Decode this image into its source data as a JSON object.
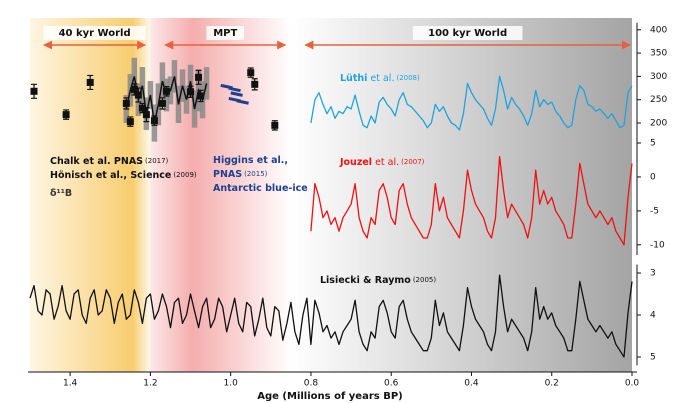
{
  "chart_data": {
    "type": "line",
    "xlabel": "Age (Millions of years BP)",
    "xlim": [
      1.5,
      0
    ],
    "xticks": [
      1.4,
      1.2,
      {
        "value": 1.0,
        "label": "1.0"
      },
      0.8,
      0.6,
      0.4,
      0.2,
      {
        "value": 0.0,
        "label": "0.0"
      }
    ],
    "ylim": [
      150,
      415
    ],
    "yticks": [
      200,
      250,
      300,
      350,
      400
    ],
    "y2lim": [
      -11.5,
      5
    ],
    "y2ticks": [
      5,
      0,
      -5,
      -10
    ],
    "y3lim": [
      2.8,
      5.2
    ],
    "y3ticks": [
      3,
      4,
      5
    ],
    "y3invert": true,
    "periods": [
      {
        "label": "40 kyr World",
        "from": 1.465,
        "to": 1.213,
        "band": [
          1.5,
          1.2
        ],
        "color": "#f6c04a"
      },
      {
        "label": "MPT",
        "from": 1.163,
        "to": 0.864,
        "band": [
          1.2,
          0.85
        ],
        "color": "#f08a8a"
      },
      {
        "label": "100 kyr World",
        "from": 0.814,
        "to": 0.005,
        "band": [
          0.85,
          0
        ],
        "color": "#9a9a9a"
      }
    ],
    "arrow_color": "#e8603c",
    "annotations": [
      {
        "parts": [
          "Chalk et al. PNAS"
        ],
        "year": "(2017)",
        "color": "#111111"
      },
      {
        "parts": [
          "Hönisch et al., Science"
        ],
        "year": "(2009)",
        "color": "#111111"
      },
      {
        "parts": [
          "δ¹¹B"
        ],
        "color": "#333333"
      },
      {
        "parts": [
          "Higgins et al.,"
        ],
        "color": "#1f3f8f"
      },
      {
        "parts": [
          "PNAS"
        ],
        "year": "(2015)",
        "color": "#1f3f8f"
      },
      {
        "parts": [
          "Antarctic blue-ice"
        ],
        "color": "#1f3f8f"
      },
      {
        "parts": [
          "Lüthi",
          "et al."
        ],
        "year": "(2008)",
        "color": "#1ea3dd"
      },
      {
        "parts": [
          "Jouzel",
          "et al."
        ],
        "year": "(2007)",
        "color": "#f01010"
      },
      {
        "parts": [
          "Lisiecki & Raymo"
        ],
        "year": "(2005)",
        "color": "#111111"
      }
    ],
    "series": [
      {
        "style": "band",
        "axis": "y",
        "color": "#8a8a8a",
        "line_color": "#111111",
        "x": [
          1.26,
          1.25,
          1.24,
          1.23,
          1.22,
          1.21,
          1.2,
          1.19,
          1.18,
          1.17,
          1.16,
          1.15,
          1.14,
          1.13,
          1.12,
          1.11,
          1.1,
          1.09,
          1.08,
          1.07,
          1.06
        ],
        "values": [
          230,
          270,
          300,
          250,
          280,
          220,
          260,
          200,
          240,
          290,
          260,
          270,
          300,
          240,
          280,
          250,
          290,
          230,
          270,
          250,
          285
        ],
        "errors": [
          30,
          35,
          40,
          35,
          40,
          35,
          30,
          40,
          45,
          40,
          35,
          30,
          35,
          40,
          35,
          30,
          35,
          40,
          45,
          40,
          35
        ]
      },
      {
        "style": "points",
        "axis": "y",
        "color": "#111111",
        "x": [
          1.49,
          1.41,
          1.35,
          1.26,
          1.25,
          1.24,
          1.23,
          1.22,
          1.21,
          1.19,
          1.17,
          1.16,
          1.1,
          1.08,
          1.075,
          0.95,
          0.94,
          0.89
        ],
        "values": [
          268,
          218,
          287,
          242,
          203,
          272,
          260,
          232,
          218,
          205,
          242,
          268,
          267,
          298,
          258,
          308,
          283,
          195
        ],
        "errors": [
          15,
          10,
          15,
          12,
          10,
          12,
          15,
          10,
          15,
          10,
          12,
          10,
          12,
          15,
          12,
          10,
          12,
          10
        ]
      },
      {
        "style": "dashes",
        "axis": "y",
        "color": "#1f3f8f",
        "x": [
          1.01,
          0.99,
          0.985,
          0.99,
          0.97
        ],
        "values": [
          278,
          272,
          262,
          250,
          245
        ]
      },
      {
        "style": "line",
        "axis": "y",
        "color": "#1ea3dd",
        "x": [
          0.8,
          0.79,
          0.78,
          0.77,
          0.76,
          0.75,
          0.74,
          0.73,
          0.72,
          0.71,
          0.7,
          0.69,
          0.68,
          0.67,
          0.66,
          0.65,
          0.64,
          0.63,
          0.62,
          0.61,
          0.6,
          0.59,
          0.58,
          0.57,
          0.56,
          0.55,
          0.54,
          0.53,
          0.52,
          0.51,
          0.5,
          0.49,
          0.48,
          0.47,
          0.46,
          0.45,
          0.44,
          0.43,
          0.42,
          0.41,
          0.4,
          0.39,
          0.38,
          0.37,
          0.36,
          0.35,
          0.34,
          0.33,
          0.32,
          0.31,
          0.3,
          0.29,
          0.28,
          0.27,
          0.26,
          0.25,
          0.24,
          0.23,
          0.22,
          0.21,
          0.2,
          0.19,
          0.18,
          0.17,
          0.16,
          0.15,
          0.14,
          0.13,
          0.12,
          0.11,
          0.1,
          0.09,
          0.08,
          0.07,
          0.06,
          0.05,
          0.04,
          0.03,
          0.02,
          0.01,
          0
        ],
        "values": [
          200,
          250,
          265,
          240,
          220,
          235,
          210,
          225,
          220,
          235,
          230,
          260,
          225,
          195,
          190,
          215,
          200,
          245,
          255,
          240,
          230,
          215,
          250,
          265,
          240,
          235,
          225,
          215,
          205,
          190,
          200,
          240,
          225,
          235,
          215,
          200,
          195,
          185,
          220,
          285,
          265,
          250,
          240,
          230,
          210,
          195,
          230,
          300,
          270,
          230,
          255,
          240,
          230,
          215,
          195,
          220,
          270,
          235,
          250,
          240,
          245,
          225,
          215,
          200,
          190,
          195,
          250,
          280,
          270,
          240,
          235,
          225,
          230,
          220,
          210,
          220,
          205,
          190,
          195,
          265,
          280
        ]
      },
      {
        "style": "line",
        "axis": "y2",
        "color": "#f01010",
        "x": [
          0.8,
          0.79,
          0.78,
          0.77,
          0.76,
          0.75,
          0.74,
          0.73,
          0.72,
          0.71,
          0.7,
          0.69,
          0.68,
          0.67,
          0.66,
          0.65,
          0.64,
          0.63,
          0.62,
          0.61,
          0.6,
          0.59,
          0.58,
          0.57,
          0.56,
          0.55,
          0.54,
          0.53,
          0.52,
          0.51,
          0.5,
          0.49,
          0.48,
          0.47,
          0.46,
          0.45,
          0.44,
          0.43,
          0.42,
          0.41,
          0.4,
          0.39,
          0.38,
          0.37,
          0.36,
          0.35,
          0.34,
          0.33,
          0.32,
          0.31,
          0.3,
          0.29,
          0.28,
          0.27,
          0.26,
          0.25,
          0.24,
          0.23,
          0.22,
          0.21,
          0.2,
          0.19,
          0.18,
          0.17,
          0.16,
          0.15,
          0.14,
          0.13,
          0.12,
          0.11,
          0.1,
          0.09,
          0.08,
          0.07,
          0.06,
          0.05,
          0.04,
          0.03,
          0.02,
          0.01,
          0
        ],
        "values": [
          -8,
          -1,
          -3,
          -6,
          -5,
          -7,
          -6,
          -8,
          -6,
          -5,
          -4,
          -1,
          -6,
          -8,
          -9,
          -6,
          -7,
          -2,
          -1,
          -3,
          -6,
          -7,
          -2,
          -1,
          -4,
          -6,
          -7,
          -8,
          -9,
          -9,
          -7,
          -1,
          -5,
          -3,
          -6,
          -7,
          -8,
          -9,
          -5,
          1,
          -2,
          -4,
          -5,
          -6,
          -8,
          -9,
          -6,
          3,
          -2,
          -6,
          -4,
          -5,
          -6,
          -7,
          -9,
          -6,
          1,
          -4,
          -2,
          -4,
          -3,
          -5,
          -6,
          -7,
          -9,
          -9,
          -4,
          2,
          -1,
          -4,
          -5,
          -6,
          -5,
          -6,
          -7,
          -6,
          -8,
          -9,
          -10,
          -3,
          2
        ]
      },
      {
        "style": "line",
        "axis": "y3",
        "color": "#111111",
        "x": [
          1.5,
          1.49,
          1.48,
          1.47,
          1.46,
          1.45,
          1.44,
          1.43,
          1.42,
          1.41,
          1.4,
          1.39,
          1.38,
          1.37,
          1.36,
          1.35,
          1.34,
          1.33,
          1.32,
          1.31,
          1.3,
          1.29,
          1.28,
          1.27,
          1.26,
          1.25,
          1.24,
          1.23,
          1.22,
          1.21,
          1.2,
          1.19,
          1.18,
          1.17,
          1.16,
          1.15,
          1.14,
          1.13,
          1.12,
          1.11,
          1.1,
          1.09,
          1.08,
          1.07,
          1.06,
          1.05,
          1.04,
          1.03,
          1.02,
          1.01,
          1,
          0.99,
          0.98,
          0.97,
          0.96,
          0.95,
          0.94,
          0.93,
          0.92,
          0.91,
          0.9,
          0.89,
          0.88,
          0.87,
          0.86,
          0.85,
          0.84,
          0.83,
          0.82,
          0.81,
          0.8,
          0.79,
          0.78,
          0.77,
          0.76,
          0.75,
          0.74,
          0.73,
          0.72,
          0.71,
          0.7,
          0.69,
          0.68,
          0.67,
          0.66,
          0.65,
          0.64,
          0.63,
          0.62,
          0.61,
          0.6,
          0.59,
          0.58,
          0.57,
          0.56,
          0.55,
          0.54,
          0.53,
          0.52,
          0.51,
          0.5,
          0.49,
          0.48,
          0.47,
          0.46,
          0.45,
          0.44,
          0.43,
          0.42,
          0.41,
          0.4,
          0.39,
          0.38,
          0.37,
          0.36,
          0.35,
          0.34,
          0.33,
          0.32,
          0.31,
          0.3,
          0.29,
          0.28,
          0.27,
          0.26,
          0.25,
          0.24,
          0.23,
          0.22,
          0.21,
          0.2,
          0.19,
          0.18,
          0.17,
          0.16,
          0.15,
          0.14,
          0.13,
          0.12,
          0.11,
          0.1,
          0.09,
          0.08,
          0.07,
          0.06,
          0.05,
          0.04,
          0.03,
          0.02,
          0.01,
          0
        ],
        "values": [
          3.6,
          3.3,
          3.9,
          4.0,
          3.4,
          3.5,
          4.1,
          3.8,
          3.3,
          3.9,
          4.1,
          3.5,
          3.4,
          4.0,
          4.2,
          3.6,
          3.4,
          4.0,
          3.9,
          3.4,
          3.6,
          4.2,
          3.7,
          3.5,
          4.1,
          4.0,
          3.4,
          3.7,
          4.2,
          3.6,
          3.5,
          4.1,
          3.9,
          3.5,
          3.8,
          4.3,
          3.7,
          3.6,
          4.2,
          4.0,
          3.5,
          3.9,
          4.3,
          3.8,
          3.6,
          4.3,
          4.1,
          3.6,
          3.8,
          4.4,
          4.0,
          3.6,
          4.2,
          4.4,
          3.7,
          3.8,
          4.5,
          4.1,
          3.6,
          4.3,
          4.5,
          3.8,
          3.9,
          4.6,
          4.2,
          3.7,
          4.4,
          4.7,
          4.0,
          3.6,
          4.7,
          3.65,
          3.95,
          4.4,
          4.25,
          4.55,
          4.4,
          4.7,
          4.4,
          4.25,
          4.1,
          3.65,
          4.4,
          4.7,
          4.85,
          4.4,
          4.55,
          3.8,
          3.65,
          3.95,
          4.4,
          4.55,
          3.8,
          3.65,
          4.1,
          4.4,
          4.55,
          4.7,
          4.85,
          4.85,
          4.55,
          3.65,
          4.25,
          3.95,
          4.4,
          4.55,
          4.7,
          4.85,
          4.25,
          3.35,
          3.8,
          4.1,
          4.25,
          4.4,
          4.7,
          4.85,
          4.4,
          3.05,
          3.8,
          4.4,
          4.1,
          4.25,
          4.4,
          4.55,
          4.85,
          4.4,
          3.35,
          4.1,
          3.8,
          4.1,
          3.95,
          4.25,
          4.4,
          4.55,
          4.85,
          4.85,
          4.1,
          3.2,
          3.65,
          4.1,
          4.25,
          4.4,
          4.25,
          4.4,
          4.55,
          4.4,
          4.7,
          4.85,
          5.0,
          3.95,
          3.2
        ]
      }
    ]
  }
}
